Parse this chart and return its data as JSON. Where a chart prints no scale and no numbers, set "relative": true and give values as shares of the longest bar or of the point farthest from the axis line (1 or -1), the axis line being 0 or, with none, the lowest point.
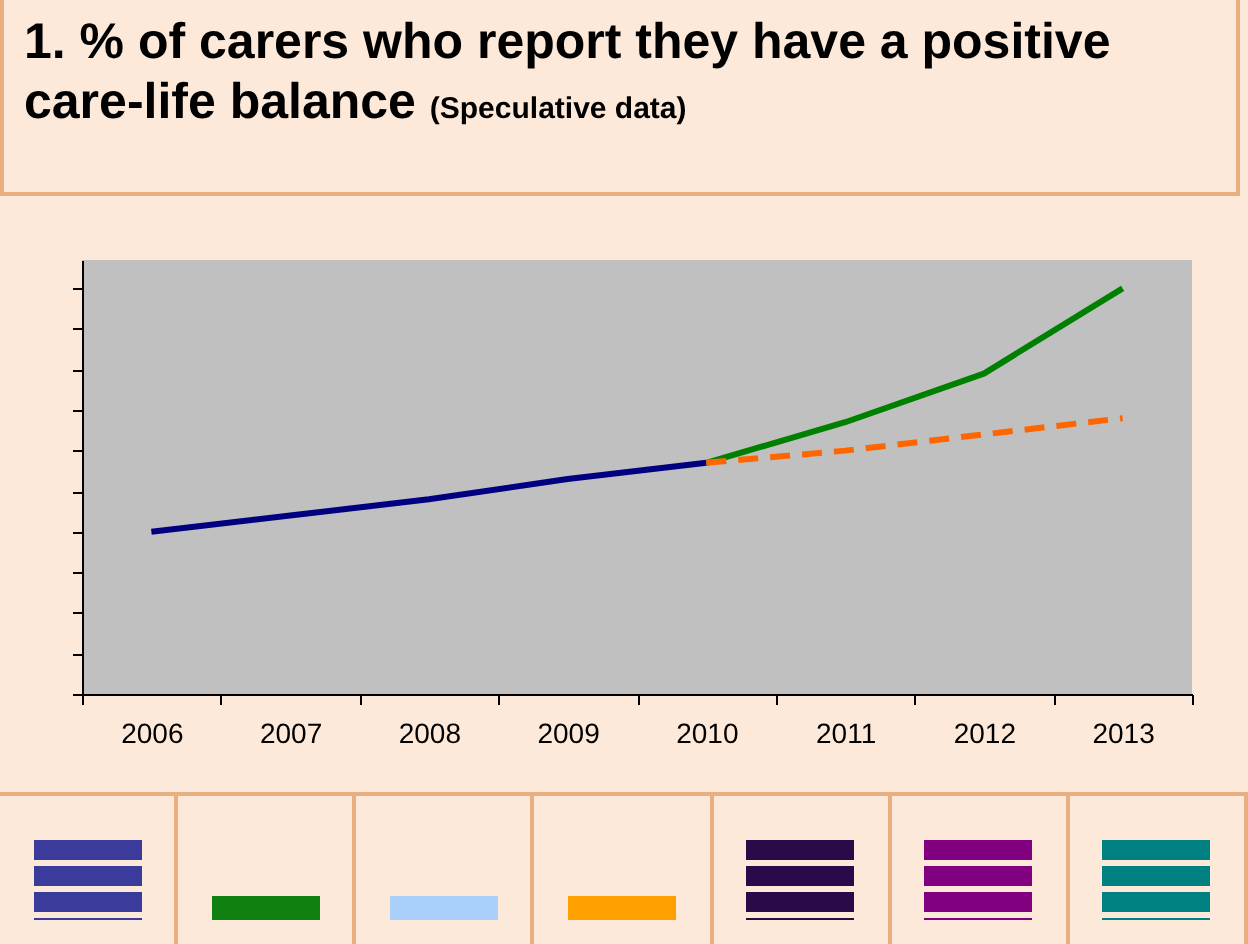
{
  "chart_data": {
    "type": "line",
    "title": "1. % of carers who report they have a positive care-life balance",
    "subtitle": "(Speculative data)",
    "relative": true,
    "categories": [
      "2006",
      "2007",
      "2008",
      "2009",
      "2010",
      "2011",
      "2012",
      "2013"
    ],
    "series": [
      {
        "color": "#000080",
        "values": [
          0.4,
          0.44,
          0.48,
          0.53,
          0.57,
          null,
          null,
          null
        ]
      },
      {
        "color": "#008000",
        "values": [
          null,
          null,
          null,
          null,
          0.57,
          0.67,
          0.79,
          1
        ]
      },
      {
        "color": "#ff6600",
        "line_style": "dashed",
        "values": [
          null,
          null,
          null,
          null,
          0.57,
          0.6,
          0.64,
          0.68
        ]
      }
    ]
  }
}
